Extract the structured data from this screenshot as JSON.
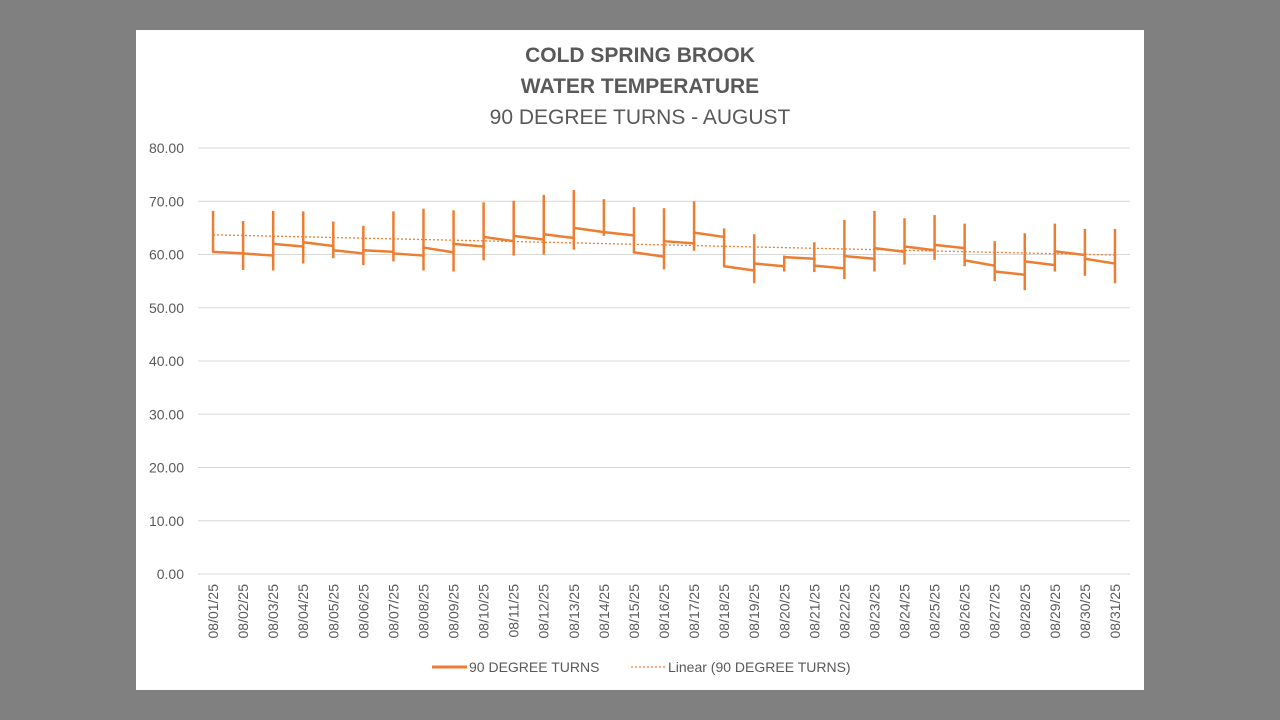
{
  "chart_data": {
    "type": "line",
    "title_line1": "COLD SPRING BROOK",
    "title_line2": "WATER TEMPERATURE",
    "subtitle": "90 DEGREE TURNS - AUGUST",
    "ylim": [
      0,
      80
    ],
    "yticks": [
      "0.00",
      "10.00",
      "20.00",
      "30.00",
      "40.00",
      "50.00",
      "60.00",
      "70.00",
      "80.00"
    ],
    "grid": true,
    "legend_position": "bottom",
    "color": "#ed7d31",
    "categories": [
      "08/01/25",
      "08/02/25",
      "08/03/25",
      "08/04/25",
      "08/05/25",
      "08/06/25",
      "08/07/25",
      "08/08/25",
      "08/09/25",
      "08/10/25",
      "08/11/25",
      "08/12/25",
      "08/13/25",
      "08/14/25",
      "08/15/25",
      "08/16/25",
      "08/17/25",
      "08/18/25",
      "08/19/25",
      "08/20/25",
      "08/21/25",
      "08/22/25",
      "08/23/25",
      "08/24/25",
      "08/25/25",
      "08/26/25",
      "08/27/25",
      "08/28/25",
      "08/29/25",
      "08/30/25",
      "08/31/25"
    ],
    "series": [
      {
        "name": "90 DEGREE TURNS",
        "daily": [
          {
            "min": 60.5,
            "max": 68.2,
            "first": 60.5,
            "last": 60.5
          },
          {
            "min": 57.1,
            "max": 66.3,
            "first": 60.2,
            "last": 60.2
          },
          {
            "min": 57.0,
            "max": 68.2,
            "first": 59.8,
            "last": 62.0
          },
          {
            "min": 58.3,
            "max": 68.1,
            "first": 61.5,
            "last": 62.3
          },
          {
            "min": 59.3,
            "max": 66.2,
            "first": 61.6,
            "last": 60.8
          },
          {
            "min": 58.0,
            "max": 65.4,
            "first": 60.2,
            "last": 60.8
          },
          {
            "min": 58.7,
            "max": 68.1,
            "first": 60.5,
            "last": 60.2
          },
          {
            "min": 57.0,
            "max": 68.6,
            "first": 59.8,
            "last": 61.3
          },
          {
            "min": 56.8,
            "max": 68.3,
            "first": 60.4,
            "last": 62.0
          },
          {
            "min": 58.9,
            "max": 69.8,
            "first": 61.5,
            "last": 63.3
          },
          {
            "min": 59.8,
            "max": 70.1,
            "first": 62.5,
            "last": 63.5
          },
          {
            "min": 60.0,
            "max": 71.2,
            "first": 62.8,
            "last": 63.8
          },
          {
            "min": 60.9,
            "max": 72.1,
            "first": 63.1,
            "last": 65.0
          },
          {
            "min": 63.5,
            "max": 70.4,
            "first": 64.2,
            "last": 64.2
          },
          {
            "min": 60.4,
            "max": 68.9,
            "first": 63.6,
            "last": 60.4
          },
          {
            "min": 57.2,
            "max": 68.7,
            "first": 59.6,
            "last": 62.5
          },
          {
            "min": 60.7,
            "max": 70.0,
            "first": 62.1,
            "last": 64.1
          },
          {
            "min": 57.8,
            "max": 64.9,
            "first": 63.3,
            "last": 57.8
          },
          {
            "min": 54.6,
            "max": 63.8,
            "first": 57.0,
            "last": 58.3
          },
          {
            "min": 56.8,
            "max": 59.8,
            "first": 57.8,
            "last": 59.5
          },
          {
            "min": 56.7,
            "max": 62.3,
            "first": 59.2,
            "last": 57.9
          },
          {
            "min": 55.4,
            "max": 66.5,
            "first": 57.4,
            "last": 59.7
          },
          {
            "min": 56.8,
            "max": 68.2,
            "first": 59.2,
            "last": 61.2
          },
          {
            "min": 58.1,
            "max": 66.8,
            "first": 60.5,
            "last": 61.5
          },
          {
            "min": 59.0,
            "max": 67.4,
            "first": 60.8,
            "last": 61.8
          },
          {
            "min": 57.8,
            "max": 65.8,
            "first": 61.2,
            "last": 58.9
          },
          {
            "min": 55.0,
            "max": 62.5,
            "first": 57.9,
            "last": 56.8
          },
          {
            "min": 53.3,
            "max": 64.0,
            "first": 56.2,
            "last": 58.7
          },
          {
            "min": 56.8,
            "max": 65.8,
            "first": 58.0,
            "last": 60.6
          },
          {
            "min": 56.0,
            "max": 64.8,
            "first": 59.9,
            "last": 59.2
          },
          {
            "min": 54.6,
            "max": 64.8,
            "first": 58.3,
            "last": 58.3
          }
        ]
      },
      {
        "name": "Linear (90 DEGREE TURNS)",
        "trend_start": 63.7,
        "trend_end": 59.9
      }
    ]
  }
}
